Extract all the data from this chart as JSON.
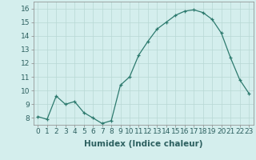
{
  "x": [
    0,
    1,
    2,
    3,
    4,
    5,
    6,
    7,
    8,
    9,
    10,
    11,
    12,
    13,
    14,
    15,
    16,
    17,
    18,
    19,
    20,
    21,
    22,
    23
  ],
  "y": [
    8.1,
    7.9,
    9.6,
    9.0,
    9.2,
    8.4,
    8.0,
    7.6,
    7.8,
    10.4,
    11.0,
    12.6,
    13.6,
    14.5,
    15.0,
    15.5,
    15.8,
    15.9,
    15.7,
    15.2,
    14.2,
    12.4,
    10.8,
    9.8
  ],
  "line_color": "#2d7a6e",
  "marker": "+",
  "marker_color": "#2d7a6e",
  "bg_color": "#d4eeed",
  "grid_color": "#b8d8d4",
  "xlabel": "Humidex (Indice chaleur)",
  "ylabel_ticks": [
    8,
    9,
    10,
    11,
    12,
    13,
    14,
    15,
    16
  ],
  "xlim": [
    -0.5,
    23.5
  ],
  "ylim": [
    7.5,
    16.5
  ],
  "xlabel_fontsize": 7.5,
  "tick_fontsize": 6.5
}
